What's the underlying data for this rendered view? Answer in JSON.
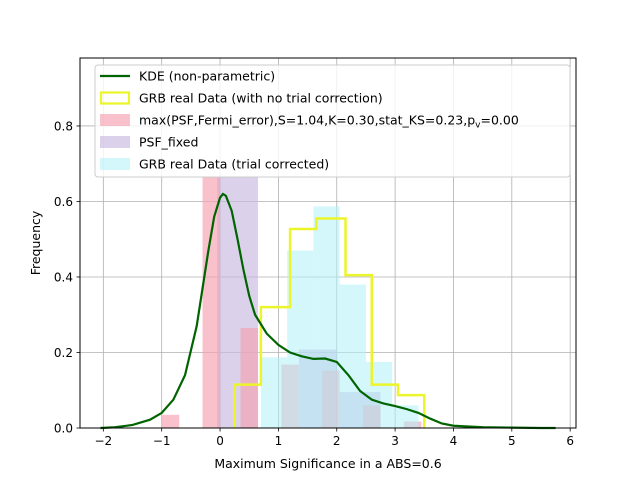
{
  "chart_data": {
    "type": "bar",
    "xlabel": "Maximum Significance in a ABS=0.6",
    "ylabel": "Frequency",
    "xlim": [
      -2.4,
      6.1
    ],
    "ylim": [
      0,
      0.98
    ],
    "grid": true,
    "legend_position": "top",
    "x_ticks": [
      -2,
      -1,
      0,
      1,
      2,
      3,
      4,
      5,
      6
    ],
    "x_tick_labels": [
      "−2",
      "−1",
      "0",
      "1",
      "2",
      "3",
      "4",
      "5",
      "6"
    ],
    "y_ticks": [
      0.0,
      0.2,
      0.4,
      0.6,
      0.8
    ],
    "y_tick_labels": [
      "0.0",
      "0.2",
      "0.4",
      "0.6",
      "0.8"
    ],
    "series": [
      {
        "name": "KDE (non-parametric)",
        "kind": "line",
        "color": "#006400",
        "x": [
          -2.05,
          -1.8,
          -1.5,
          -1.2,
          -1.0,
          -0.8,
          -0.6,
          -0.4,
          -0.3,
          -0.2,
          -0.1,
          0.0,
          0.05,
          0.1,
          0.2,
          0.3,
          0.4,
          0.5,
          0.6,
          0.8,
          1.0,
          1.2,
          1.4,
          1.6,
          1.8,
          2.0,
          2.2,
          2.4,
          2.6,
          2.8,
          3.0,
          3.2,
          3.4,
          3.6,
          3.8,
          4.0,
          4.5,
          5.0,
          5.5,
          5.75
        ],
        "y": [
          0.0,
          0.002,
          0.008,
          0.022,
          0.04,
          0.075,
          0.14,
          0.27,
          0.37,
          0.47,
          0.56,
          0.61,
          0.62,
          0.615,
          0.575,
          0.5,
          0.42,
          0.35,
          0.3,
          0.25,
          0.22,
          0.2,
          0.19,
          0.183,
          0.184,
          0.175,
          0.14,
          0.098,
          0.075,
          0.065,
          0.058,
          0.05,
          0.04,
          0.025,
          0.012,
          0.006,
          0.002,
          0.001,
          0.0,
          0.0
        ]
      },
      {
        "name": "GRB real Data (with no trial correction)",
        "kind": "step",
        "color": "#ebf52a",
        "edges": [
          0.25,
          0.7,
          1.2,
          1.65,
          2.15,
          2.6,
          3.05,
          3.5
        ],
        "values": [
          0.115,
          0.32,
          0.527,
          0.555,
          0.405,
          0.115,
          0.087
        ]
      },
      {
        "name": "max(PSF,Fermi_error),S=1.04,K=0.30,stat_KS=0.23,p",
        "name_sub": "v",
        "name_tail": "=0.00",
        "kind": "bars",
        "color": "#f4a0b0",
        "bars": [
          {
            "x0": -1.0,
            "x1": -0.7,
            "value": 0.035
          },
          {
            "x0": -0.3,
            "x1": 0.0,
            "value": 0.665
          },
          {
            "x0": 0.35,
            "x1": 0.65,
            "value": 0.265
          },
          {
            "x0": 1.05,
            "x1": 1.35,
            "value": 0.168
          },
          {
            "x0": 1.75,
            "x1": 2.05,
            "value": 0.152
          },
          {
            "x0": 2.45,
            "x1": 2.75,
            "value": 0.06
          },
          {
            "x0": 3.15,
            "x1": 3.45,
            "value": 0.017
          }
        ]
      },
      {
        "name": "PSF_fixed",
        "kind": "bars",
        "color": "#c8b8e0",
        "bars": [
          {
            "x0": -0.05,
            "x1": 0.65,
            "value": 0.665
          },
          {
            "x0": 1.35,
            "x1": 2.0,
            "value": 0.208
          },
          {
            "x0": 2.05,
            "x1": 2.75,
            "value": 0.095
          }
        ]
      },
      {
        "name": "GRB real Data (trial corrected)",
        "kind": "bars",
        "color": "#b0f0f8",
        "bars": [
          {
            "x0": 0.7,
            "x1": 1.15,
            "value": 0.187
          },
          {
            "x0": 1.15,
            "x1": 1.6,
            "value": 0.47
          },
          {
            "x0": 1.6,
            "x1": 2.05,
            "value": 0.587
          },
          {
            "x0": 2.05,
            "x1": 2.5,
            "value": 0.38
          },
          {
            "x0": 2.5,
            "x1": 2.95,
            "value": 0.175
          },
          {
            "x0": 2.95,
            "x1": 3.4,
            "value": 0.06
          }
        ]
      }
    ]
  }
}
